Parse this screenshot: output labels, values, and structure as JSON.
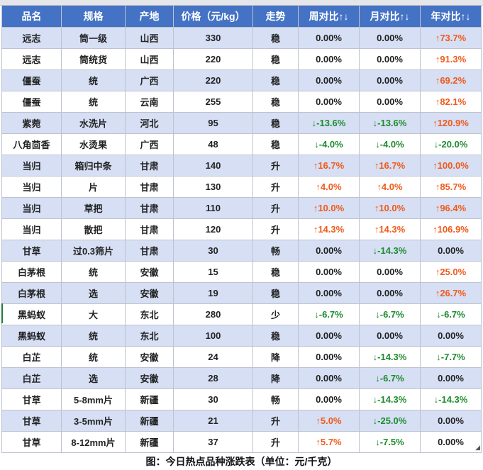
{
  "colors": {
    "header_bg": "#4472c4",
    "header_text": "#ffffff",
    "band_row": "#d6dff4",
    "up": "#f05a1a",
    "down": "#1c8c2c"
  },
  "table": {
    "headers": [
      "品名",
      "规格",
      "产地",
      "价格（元/kg）",
      "走势",
      "周对比↑↓",
      "月对比↑↓",
      "年对比↑↓"
    ],
    "rows": [
      [
        "远志",
        "筒一级",
        "山西",
        "330",
        "稳",
        "0.00%",
        "0.00%",
        "↑73.7%"
      ],
      [
        "远志",
        "筒统货",
        "山西",
        "220",
        "稳",
        "0.00%",
        "0.00%",
        "↑91.3%"
      ],
      [
        "僵蚕",
        "统",
        "广西",
        "220",
        "稳",
        "0.00%",
        "0.00%",
        "↑69.2%"
      ],
      [
        "僵蚕",
        "统",
        "云南",
        "255",
        "稳",
        "0.00%",
        "0.00%",
        "↑82.1%"
      ],
      [
        "紫菀",
        "水洗片",
        "河北",
        "95",
        "稳",
        "↓-13.6%",
        "↓-13.6%",
        "↑120.9%"
      ],
      [
        "八角茴香",
        "水烫果",
        "广西",
        "48",
        "稳",
        "↓-4.0%",
        "↓-4.0%",
        "↓-20.0%"
      ],
      [
        "当归",
        "箱归中条",
        "甘肃",
        "140",
        "升",
        "↑16.7%",
        "↑16.7%",
        "↑100.0%"
      ],
      [
        "当归",
        "片",
        "甘肃",
        "130",
        "升",
        "↑4.0%",
        "↑4.0%",
        "↑85.7%"
      ],
      [
        "当归",
        "草把",
        "甘肃",
        "110",
        "升",
        "↑10.0%",
        "↑10.0%",
        "↑96.4%"
      ],
      [
        "当归",
        "散把",
        "甘肃",
        "120",
        "升",
        "↑14.3%",
        "↑14.3%",
        "↑106.9%"
      ],
      [
        "甘草",
        "过0.3筛片",
        "甘肃",
        "30",
        "畅",
        "0.00%",
        "↓-14.3%",
        "0.00%"
      ],
      [
        "白茅根",
        "统",
        "安徽",
        "15",
        "稳",
        "0.00%",
        "0.00%",
        "↑25.0%"
      ],
      [
        "白茅根",
        "选",
        "安徽",
        "19",
        "稳",
        "0.00%",
        "0.00%",
        "↑26.7%"
      ],
      [
        "黑蚂蚁",
        "大",
        "东北",
        "280",
        "少",
        "↓-6.7%",
        "↓-6.7%",
        "↓-6.7%"
      ],
      [
        "黑蚂蚁",
        "统",
        "东北",
        "100",
        "稳",
        "0.00%",
        "0.00%",
        "0.00%"
      ],
      [
        "白芷",
        "统",
        "安徽",
        "24",
        "降",
        "0.00%",
        "↓-14.3%",
        "↓-7.7%"
      ],
      [
        "白芷",
        "选",
        "安徽",
        "28",
        "降",
        "0.00%",
        "↓-6.7%",
        "0.00%"
      ],
      [
        "甘草",
        "5-8mm片",
        "新疆",
        "30",
        "畅",
        "0.00%",
        "↓-14.3%",
        "↓-14.3%"
      ],
      [
        "甘草",
        "3-5mm片",
        "新疆",
        "21",
        "升",
        "↑5.0%",
        "↓-25.0%",
        "0.00%"
      ],
      [
        "甘草",
        "8-12mm片",
        "新疆",
        "37",
        "升",
        "↑5.7%",
        "↓-7.5%",
        "0.00%"
      ]
    ]
  },
  "caption": "图：今日热点品种涨跌表（单位：元/千克）"
}
